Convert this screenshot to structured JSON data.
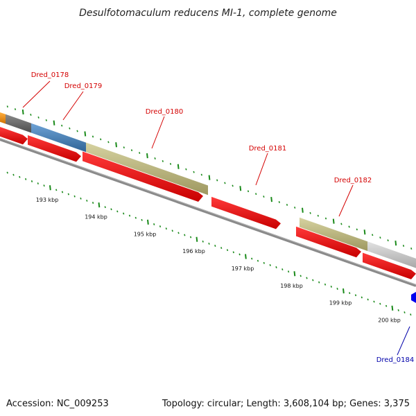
{
  "title": "Desulfotomaculum reducens MI-1, complete genome",
  "accession": "Accession: NC_009253",
  "topology": "Topology: circular; Length: 3,608,104 bp; Genes: 3,375",
  "scale_labels": [
    "193 kbp",
    "194 kbp",
    "195 kbp",
    "196 kbp",
    "197 kbp",
    "198 kbp",
    "199 kbp",
    "200 kbp"
  ],
  "gene_labels": [
    "Dred_0178",
    "Dred_0179",
    "Dred_0180",
    "Dred_0181",
    "Dred_0182",
    "Dred_0184"
  ],
  "colors": {
    "gene_red": "#ff0000",
    "tick_green": "#1a8a1a",
    "label_red": "#d40000",
    "label_blue": "#0000aa",
    "cog_orange": "#f0900a",
    "cog_darkgray": "#6e6e6e",
    "cog_steelblue": "#4a82b8",
    "cog_khaki": "#bdb77a",
    "cog_lightgray": "#c6c6c6",
    "feature_blue": "#0000ee"
  }
}
